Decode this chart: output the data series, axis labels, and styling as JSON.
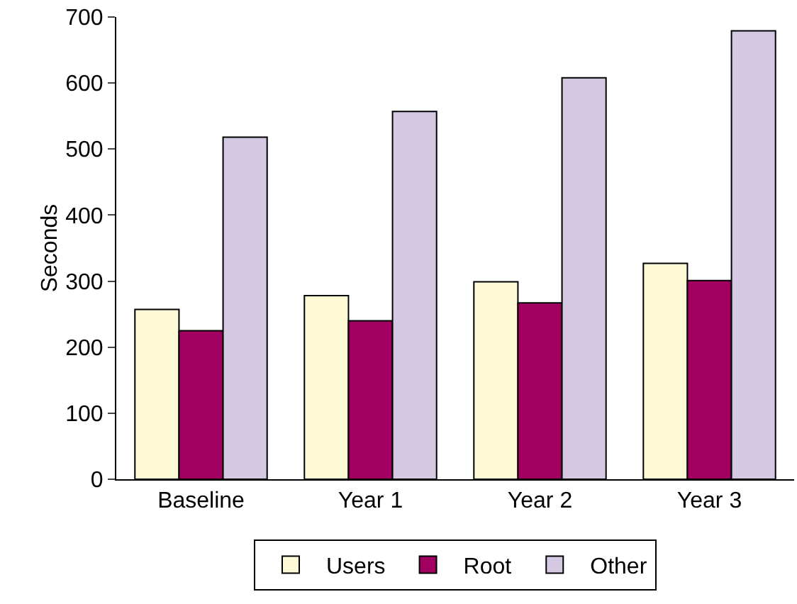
{
  "chart_data": {
    "type": "bar",
    "ylabel": "Seconds",
    "categories": [
      "Baseline",
      "Year 1",
      "Year 2",
      "Year 3"
    ],
    "series": [
      {
        "name": "Users",
        "color": "#fefad6",
        "values": [
          257,
          278,
          299,
          327
        ]
      },
      {
        "name": "Root",
        "color": "#a10060",
        "values": [
          225,
          240,
          267,
          301
        ]
      },
      {
        "name": "Other",
        "color": "#d4c8e2",
        "values": [
          518,
          557,
          608,
          679
        ]
      }
    ],
    "ylim": [
      0,
      700
    ],
    "yticks": [
      0,
      100,
      200,
      300,
      400,
      500,
      600,
      700
    ],
    "grid": false,
    "legend": "bottom"
  }
}
